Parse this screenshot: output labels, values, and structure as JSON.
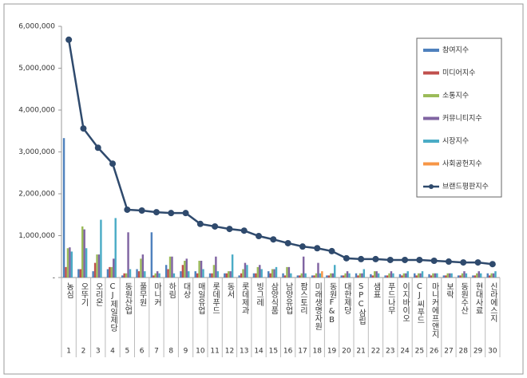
{
  "chart_data": {
    "type": "bar",
    "categories": [
      "농심",
      "오뚜기",
      "오리온",
      "CJ제일제당",
      "동원산업",
      "풀무원",
      "마니커",
      "하림",
      "대상",
      "매일유업",
      "롯데푸드",
      "동서",
      "롯데제과",
      "빙그레",
      "삼양식품",
      "남양유업",
      "팜스토리",
      "미래생명자원",
      "동원F&B",
      "대한제당",
      "SPC삼립",
      "샘표",
      "푸드나무",
      "이지바이오",
      "CJ씨푸드",
      "마니커에프앤지",
      "보락",
      "동원수산",
      "현대사료",
      "신라에스지"
    ],
    "ranks": [
      1,
      2,
      3,
      4,
      5,
      6,
      7,
      8,
      9,
      10,
      11,
      12,
      13,
      14,
      15,
      16,
      17,
      18,
      19,
      20,
      21,
      22,
      23,
      24,
      25,
      26,
      27,
      28,
      29,
      30
    ],
    "ylim": [
      0,
      6000000
    ],
    "yticks": [
      {
        "value": 0,
        "label": "-"
      },
      {
        "value": 1000000,
        "label": "1,000,000"
      },
      {
        "value": 2000000,
        "label": "2,000,000"
      },
      {
        "value": 3000000,
        "label": "3,000,000"
      },
      {
        "value": 4000000,
        "label": "4,000,000"
      },
      {
        "value": 5000000,
        "label": "5,000,000"
      },
      {
        "value": 6000000,
        "label": "6,000,000"
      }
    ],
    "grid": false,
    "legend": "top-right",
    "series": [
      {
        "name": "참여지수",
        "type": "bar",
        "color": "#4f81bd",
        "values": [
          3330000,
          200000,
          150000,
          200000,
          50000,
          200000,
          1080000,
          300000,
          150000,
          150000,
          100000,
          100000,
          50000,
          100000,
          150000,
          100000,
          50000,
          50000,
          50000,
          50000,
          100000,
          80000,
          50000,
          80000,
          100000,
          80000,
          50000,
          50000,
          50000,
          100000
        ]
      },
      {
        "name": "미디어지수",
        "type": "bar",
        "color": "#c0504d",
        "values": [
          250000,
          200000,
          350000,
          250000,
          100000,
          150000,
          50000,
          200000,
          300000,
          100000,
          100000,
          100000,
          100000,
          100000,
          100000,
          50000,
          50000,
          50000,
          50000,
          50000,
          50000,
          50000,
          50000,
          50000,
          50000,
          50000,
          50000,
          50000,
          50000,
          50000
        ]
      },
      {
        "name": "소통지수",
        "type": "bar",
        "color": "#9bbb59",
        "values": [
          700000,
          1220000,
          550000,
          250000,
          100000,
          450000,
          100000,
          500000,
          400000,
          400000,
          300000,
          150000,
          200000,
          250000,
          200000,
          250000,
          100000,
          100000,
          100000,
          100000,
          100000,
          150000,
          100000,
          100000,
          100000,
          100000,
          100000,
          100000,
          100000,
          100000
        ]
      },
      {
        "name": "커뮤니티지수",
        "type": "bar",
        "color": "#8064a2",
        "values": [
          720000,
          1150000,
          550000,
          450000,
          1080000,
          550000,
          150000,
          500000,
          450000,
          400000,
          500000,
          150000,
          350000,
          300000,
          200000,
          250000,
          500000,
          350000,
          100000,
          150000,
          100000,
          150000,
          150000,
          100000,
          100000,
          100000,
          100000,
          150000,
          150000,
          100000
        ]
      },
      {
        "name": "시장지수",
        "type": "bar",
        "color": "#4bacc6",
        "values": [
          620000,
          700000,
          1380000,
          1420000,
          200000,
          150000,
          100000,
          100000,
          150000,
          200000,
          150000,
          550000,
          300000,
          200000,
          250000,
          100000,
          100000,
          100000,
          300000,
          100000,
          200000,
          100000,
          100000,
          150000,
          150000,
          100000,
          100000,
          100000,
          100000,
          150000
        ]
      },
      {
        "name": "사회공헌지수",
        "type": "bar",
        "color": "#f79646",
        "values": [
          0,
          0,
          0,
          0,
          0,
          0,
          0,
          0,
          0,
          0,
          0,
          0,
          0,
          0,
          0,
          0,
          0,
          150000,
          0,
          0,
          0,
          0,
          0,
          0,
          0,
          0,
          0,
          0,
          0,
          0
        ]
      },
      {
        "name": "브랜드평판지수",
        "type": "line",
        "color": "#2f4a6d",
        "values": [
          5680000,
          3560000,
          3100000,
          2720000,
          1620000,
          1600000,
          1560000,
          1540000,
          1540000,
          1280000,
          1220000,
          1160000,
          1120000,
          990000,
          910000,
          820000,
          740000,
          700000,
          630000,
          460000,
          440000,
          440000,
          420000,
          420000,
          420000,
          400000,
          380000,
          360000,
          360000,
          320000
        ]
      }
    ]
  }
}
